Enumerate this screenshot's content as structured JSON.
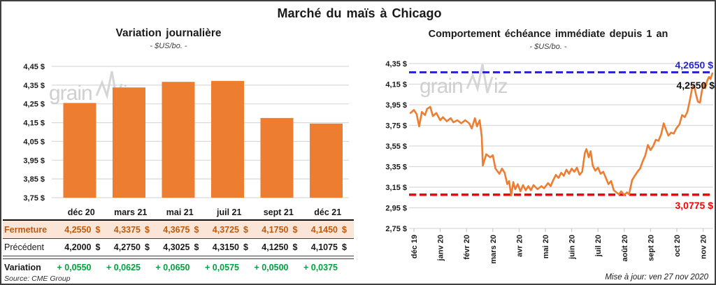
{
  "title": "Marché du maïs à Chicago",
  "source": "Source: CME Group",
  "updated": "Mise à jour: ven 27 nov 2020",
  "watermark": {
    "part1": "grain",
    "part2": "iz"
  },
  "colors": {
    "orange": "#ED7D31",
    "grid": "#D9D9D9",
    "axis_tick": "#BFBFBF",
    "highlight_bg": "#FBE5D6",
    "highlight_text": "#BE5A10",
    "variation_green": "#00A23E",
    "resistance_blue": "#2828CC",
    "support_red": "#FF0000",
    "last_black": "#111111",
    "watermark_gray": "#C8C8C8"
  },
  "left_chart": {
    "title": "Variation journalière",
    "subtitle": "- $US/bo. -"
  },
  "right_chart": {
    "title": "Comportement échéance immédiate depuis 1 an",
    "subtitle": "- $US/bo. -",
    "resistance_label": "4,2650 $",
    "last_label": "4,2550 $",
    "support_label": "3,0775 $"
  },
  "table": {
    "columns": [
      "déc 20",
      "mars 21",
      "mai 21",
      "juil 21",
      "sept 21",
      "déc 21"
    ],
    "rows": [
      {
        "label": "Fermeture",
        "style": "highlight",
        "unit": "$",
        "values": [
          "4,2550",
          "4,3375",
          "4,3675",
          "4,3725",
          "4,1750",
          "4,1450"
        ]
      },
      {
        "label": "Précédent",
        "style": "normal",
        "unit": "$",
        "values": [
          "4,2000",
          "4,2750",
          "4,3025",
          "4,3150",
          "4,1250",
          "4,1075"
        ]
      },
      {
        "label": "Variation",
        "style": "variation",
        "unit": "",
        "values": [
          "+ 0,0550",
          "+ 0,0625",
          "+ 0,0650",
          "+ 0,0575",
          "+ 0,0500",
          "+ 0,0375"
        ]
      }
    ]
  },
  "chart_data": [
    {
      "type": "bar",
      "title": "Variation journalière",
      "units": "$US/bo.",
      "categories": [
        "déc 20",
        "mars 21",
        "mai 21",
        "juil 21",
        "sept 21",
        "déc 21"
      ],
      "values": [
        4.255,
        4.3375,
        4.3675,
        4.3725,
        4.175,
        4.145
      ],
      "ylim": [
        3.75,
        4.45
      ],
      "yticks": [
        {
          "v": 4.45,
          "label": "4,45 $"
        },
        {
          "v": 4.35,
          "label": "4,35 $"
        },
        {
          "v": 4.25,
          "label": "4,25 $"
        },
        {
          "v": 4.15,
          "label": "4,15 $"
        },
        {
          "v": 4.05,
          "label": "4,05 $"
        },
        {
          "v": 3.95,
          "label": "3,95 $"
        },
        {
          "v": 3.85,
          "label": "3,85 $"
        },
        {
          "v": 3.75,
          "label": "3,75 $"
        }
      ]
    },
    {
      "type": "line",
      "title": "Comportement échéance immédiate depuis 1 an",
      "units": "$US/bo.",
      "ylim": [
        2.75,
        4.35
      ],
      "yticks": [
        {
          "v": 4.35,
          "label": "4,35 $"
        },
        {
          "v": 4.15,
          "label": "4,15 $"
        },
        {
          "v": 3.95,
          "label": "3,95 $"
        },
        {
          "v": 3.75,
          "label": "3,75 $"
        },
        {
          "v": 3.55,
          "label": "3,55 $"
        },
        {
          "v": 3.35,
          "label": "3,35 $"
        },
        {
          "v": 3.15,
          "label": "3,15 $"
        },
        {
          "v": 2.95,
          "label": "2,95 $"
        },
        {
          "v": 2.75,
          "label": "2,75 $"
        }
      ],
      "xticks": [
        "déc 19",
        "janv 20",
        "févr 20",
        "mars 20",
        "avr 20",
        "mai 20",
        "juin 20",
        "juil 20",
        "août 20",
        "sept 20",
        "oct 20",
        "nov 20"
      ],
      "resistance": 4.265,
      "support": 3.0775,
      "last": 4.255,
      "points": [
        [
          -0.13,
          3.87
        ],
        [
          0.0,
          3.9
        ],
        [
          0.1,
          3.86
        ],
        [
          0.2,
          3.74
        ],
        [
          0.3,
          3.88
        ],
        [
          0.42,
          3.85
        ],
        [
          0.5,
          3.91
        ],
        [
          0.62,
          3.93
        ],
        [
          0.72,
          3.84
        ],
        [
          0.85,
          3.87
        ],
        [
          1.0,
          3.8
        ],
        [
          1.1,
          3.83
        ],
        [
          1.25,
          3.79
        ],
        [
          1.4,
          3.82
        ],
        [
          1.5,
          3.78
        ],
        [
          1.65,
          3.8
        ],
        [
          1.8,
          3.77
        ],
        [
          1.95,
          3.8
        ],
        [
          2.1,
          3.77
        ],
        [
          2.2,
          3.72
        ],
        [
          2.32,
          3.82
        ],
        [
          2.4,
          3.74
        ],
        [
          2.5,
          3.8
        ],
        [
          2.58,
          3.64
        ],
        [
          2.62,
          3.36
        ],
        [
          2.75,
          3.47
        ],
        [
          2.9,
          3.44
        ],
        [
          3.0,
          3.46
        ],
        [
          3.1,
          3.33
        ],
        [
          3.25,
          3.28
        ],
        [
          3.35,
          3.33
        ],
        [
          3.45,
          3.29
        ],
        [
          3.55,
          3.18
        ],
        [
          3.62,
          3.21
        ],
        [
          3.7,
          3.07
        ],
        [
          3.78,
          3.2
        ],
        [
          3.85,
          3.13
        ],
        [
          3.95,
          3.18
        ],
        [
          4.05,
          3.11
        ],
        [
          4.15,
          3.17
        ],
        [
          4.25,
          3.12
        ],
        [
          4.35,
          3.16
        ],
        [
          4.45,
          3.12
        ],
        [
          4.55,
          3.17
        ],
        [
          4.7,
          3.13
        ],
        [
          4.85,
          3.16
        ],
        [
          4.95,
          3.14
        ],
        [
          5.1,
          3.19
        ],
        [
          5.2,
          3.16
        ],
        [
          5.3,
          3.22
        ],
        [
          5.4,
          3.27
        ],
        [
          5.5,
          3.24
        ],
        [
          5.6,
          3.29
        ],
        [
          5.7,
          3.26
        ],
        [
          5.8,
          3.32
        ],
        [
          5.9,
          3.28
        ],
        [
          6.0,
          3.33
        ],
        [
          6.1,
          3.3
        ],
        [
          6.2,
          3.34
        ],
        [
          6.3,
          3.27
        ],
        [
          6.4,
          3.3
        ],
        [
          6.5,
          3.48
        ],
        [
          6.56,
          3.52
        ],
        [
          6.65,
          3.44
        ],
        [
          6.72,
          3.5
        ],
        [
          6.8,
          3.36
        ],
        [
          6.9,
          3.31
        ],
        [
          7.0,
          3.34
        ],
        [
          7.1,
          3.28
        ],
        [
          7.2,
          3.3
        ],
        [
          7.3,
          3.24
        ],
        [
          7.4,
          3.18
        ],
        [
          7.5,
          3.21
        ],
        [
          7.6,
          3.12
        ],
        [
          7.7,
          3.1
        ],
        [
          7.8,
          3.08
        ],
        [
          7.88,
          3.11
        ],
        [
          8.0,
          3.075
        ],
        [
          8.1,
          3.1
        ],
        [
          8.18,
          3.08
        ],
        [
          8.3,
          3.22
        ],
        [
          8.4,
          3.26
        ],
        [
          8.5,
          3.3
        ],
        [
          8.6,
          3.33
        ],
        [
          8.7,
          3.4
        ],
        [
          8.8,
          3.46
        ],
        [
          8.9,
          3.56
        ],
        [
          9.0,
          3.51
        ],
        [
          9.1,
          3.55
        ],
        [
          9.2,
          3.61
        ],
        [
          9.3,
          3.6
        ],
        [
          9.4,
          3.66
        ],
        [
          9.5,
          3.77
        ],
        [
          9.6,
          3.7
        ],
        [
          9.68,
          3.65
        ],
        [
          9.78,
          3.68
        ],
        [
          9.88,
          3.67
        ],
        [
          9.98,
          3.72
        ],
        [
          10.1,
          3.76
        ],
        [
          10.2,
          3.85
        ],
        [
          10.3,
          3.83
        ],
        [
          10.4,
          3.88
        ],
        [
          10.5,
          4.0
        ],
        [
          10.58,
          4.11
        ],
        [
          10.65,
          4.14
        ],
        [
          10.73,
          4.05
        ],
        [
          10.8,
          3.98
        ],
        [
          10.88,
          3.97
        ],
        [
          10.95,
          4.08
        ],
        [
          11.02,
          4.15
        ],
        [
          11.08,
          4.11
        ],
        [
          11.15,
          4.18
        ],
        [
          11.22,
          4.22
        ],
        [
          11.28,
          4.2
        ],
        [
          11.35,
          4.255
        ]
      ]
    }
  ]
}
